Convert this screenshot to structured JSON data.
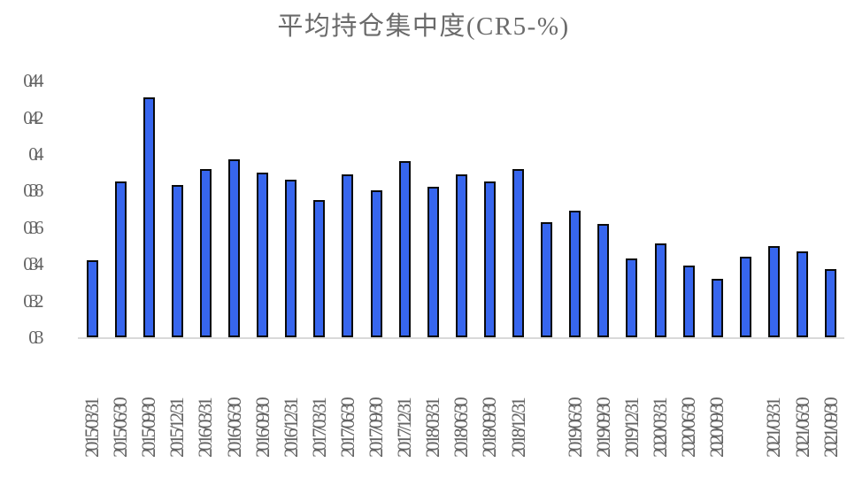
{
  "chart_data": {
    "type": "bar",
    "title": "平均持仓集中度(CR5-%)",
    "xlabel": "",
    "ylabel": "",
    "ylim": [
      0.3,
      0.44
    ],
    "ytick_step": 0.02,
    "ytick_labels": [
      "0.44",
      "0.42",
      "0.4",
      "0.38",
      "0.36",
      "0.34",
      "0.32",
      "0.3"
    ],
    "ytick_values": [
      0.44,
      0.42,
      0.4,
      0.38,
      0.36,
      0.34,
      0.32,
      0.3
    ],
    "categories": [
      "2015/03/31",
      "2015/06/30",
      "2015/09/30",
      "2015/12/31",
      "2016/03/31",
      "2016/06/30",
      "2016/09/30",
      "2016/12/31",
      "2017/03/31",
      "2017/06/30",
      "2017/09/30",
      "2017/12/31",
      "2018/03/31",
      "2018/06/30",
      "2018/09/30",
      "2018/12/31",
      "2019/03/31",
      "2019/06/30",
      "2019/09/30",
      "2019/12/31",
      "2020/03/31",
      "2020/06/30",
      "2020/09/30",
      "2020/12/31",
      "2021/03/31",
      "2021/06/30",
      "2021/09/30"
    ],
    "values": [
      0.342,
      0.385,
      0.431,
      0.383,
      0.392,
      0.397,
      0.39,
      0.386,
      0.375,
      0.389,
      0.38,
      0.396,
      0.382,
      0.389,
      0.385,
      0.392,
      0.363,
      0.369,
      0.362,
      0.343,
      0.351,
      0.339,
      0.332,
      0.344,
      0.35,
      0.347,
      0.337
    ],
    "xlabel_hidden_indices": [
      16,
      23
    ],
    "bar_fill": "#3766ee",
    "bar_border": "#0a0a0a",
    "text_color": "#636363",
    "axis_line_color": "#d9d9d9",
    "grid": "off",
    "legend": "none"
  }
}
